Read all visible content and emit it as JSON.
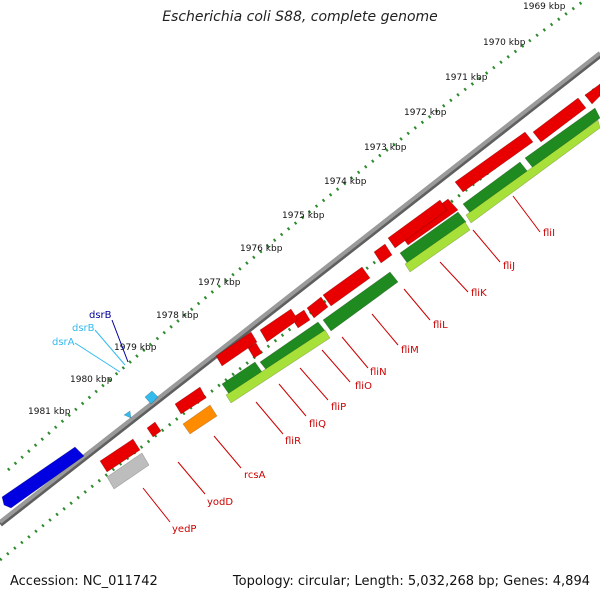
{
  "title": "Escherichia coli S88, complete genome",
  "footer": {
    "accession": "Accession: NC_011742",
    "summary": "Topology: circular; Length: 5,032,268 bp; Genes: 4,894"
  },
  "colors": {
    "backbone": "#9a9a9a",
    "scale_dots": "#2e8b2e",
    "gene_red": "#e80000",
    "gene_dark_green": "#1f8a1f",
    "gene_light_green": "#a8e03a",
    "gene_blue": "#0000e0",
    "gene_orange": "#ff8c00",
    "gene_gray": "#bdbdbd",
    "gene_cyan": "#33bbee",
    "label_red": "#cc0000",
    "label_navy": "#000099",
    "label_cyan": "#33bbee"
  },
  "scale_labels": [
    "1969 kbp",
    "1970 kbp",
    "1971 kbp",
    "1972 kbp",
    "1973 kbp",
    "1974 kbp",
    "1975 kbp",
    "1976 kbp",
    "1977 kbp",
    "1978 kbp",
    "1979 kbp",
    "1980 kbp",
    "1981 kbp"
  ],
  "gene_labels": [
    {
      "text": "fliI",
      "color": "label_red"
    },
    {
      "text": "fliJ",
      "color": "label_red"
    },
    {
      "text": "fliK",
      "color": "label_red"
    },
    {
      "text": "fliL",
      "color": "label_red"
    },
    {
      "text": "fliM",
      "color": "label_red"
    },
    {
      "text": "fliN",
      "color": "label_red"
    },
    {
      "text": "fliO",
      "color": "label_red"
    },
    {
      "text": "fliP",
      "color": "label_red"
    },
    {
      "text": "fliQ",
      "color": "label_red"
    },
    {
      "text": "fliR",
      "color": "label_red"
    },
    {
      "text": "rcsA",
      "color": "label_red"
    },
    {
      "text": "yodD",
      "color": "label_red"
    },
    {
      "text": "yedP",
      "color": "label_red"
    },
    {
      "text": "dsrB",
      "color": "label_navy"
    },
    {
      "text": "dsrB",
      "color": "label_cyan"
    },
    {
      "text": "dsrA",
      "color": "label_cyan"
    }
  ]
}
